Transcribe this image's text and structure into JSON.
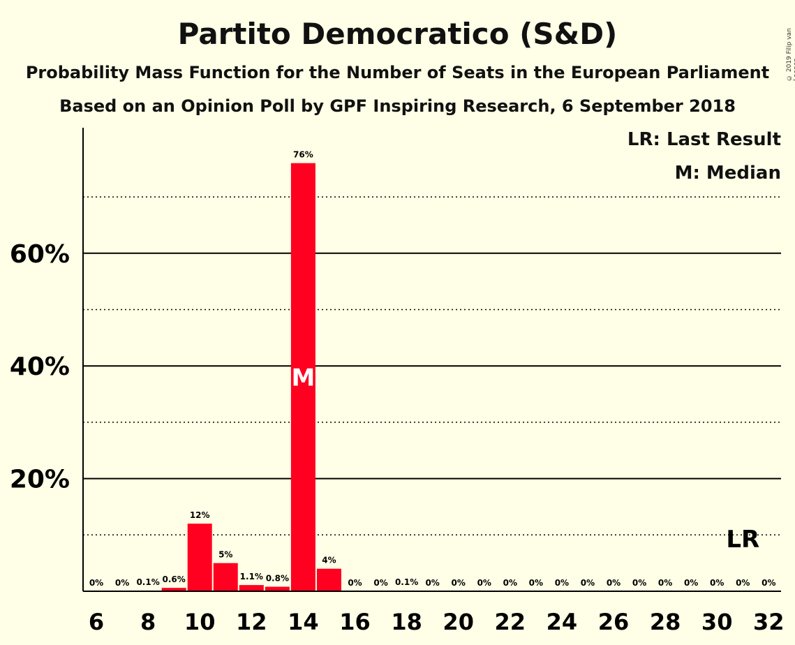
{
  "chart_data": {
    "type": "bar",
    "title": "Partito Democratico (S&D)",
    "subtitle": "Probability Mass Function for the Number of Seats in the European Parliament",
    "subtitle2": "Based on an Opinion Poll by GPF Inspiring Research, 6 September 2018",
    "legend": [
      "LR: Last Result",
      "M: Median"
    ],
    "copyright": "© 2019 Filip van Laenen",
    "x": [
      6,
      7,
      8,
      9,
      10,
      11,
      12,
      13,
      14,
      15,
      16,
      17,
      18,
      19,
      20,
      21,
      22,
      23,
      24,
      25,
      26,
      27,
      28,
      29,
      30,
      31,
      32
    ],
    "values": [
      0,
      0,
      0.1,
      0.6,
      12,
      5,
      1.1,
      0.8,
      76,
      4,
      0,
      0,
      0.1,
      0,
      0,
      0,
      0,
      0,
      0,
      0,
      0,
      0,
      0,
      0,
      0,
      0,
      0
    ],
    "labels": [
      "0%",
      "0%",
      "0.1%",
      "0.6%",
      "12%",
      "5%",
      "1.1%",
      "0.8%",
      "76%",
      "4%",
      "0%",
      "0%",
      "0.1%",
      "0%",
      "0%",
      "0%",
      "0%",
      "0%",
      "0%",
      "0%",
      "0%",
      "0%",
      "0%",
      "0%",
      "0%",
      "0%",
      "0%"
    ],
    "xticks": [
      6,
      8,
      10,
      12,
      14,
      16,
      18,
      20,
      22,
      24,
      26,
      28,
      30,
      32
    ],
    "yticks": [
      20,
      40,
      60
    ],
    "ytick_labels": [
      "20%",
      "40%",
      "60%"
    ],
    "ylim": [
      0,
      82
    ],
    "median": 14,
    "median_label": "M",
    "last_result": 31,
    "last_result_label": "LR",
    "bar_color": "#FF0020",
    "background": "#FFFEE6"
  }
}
